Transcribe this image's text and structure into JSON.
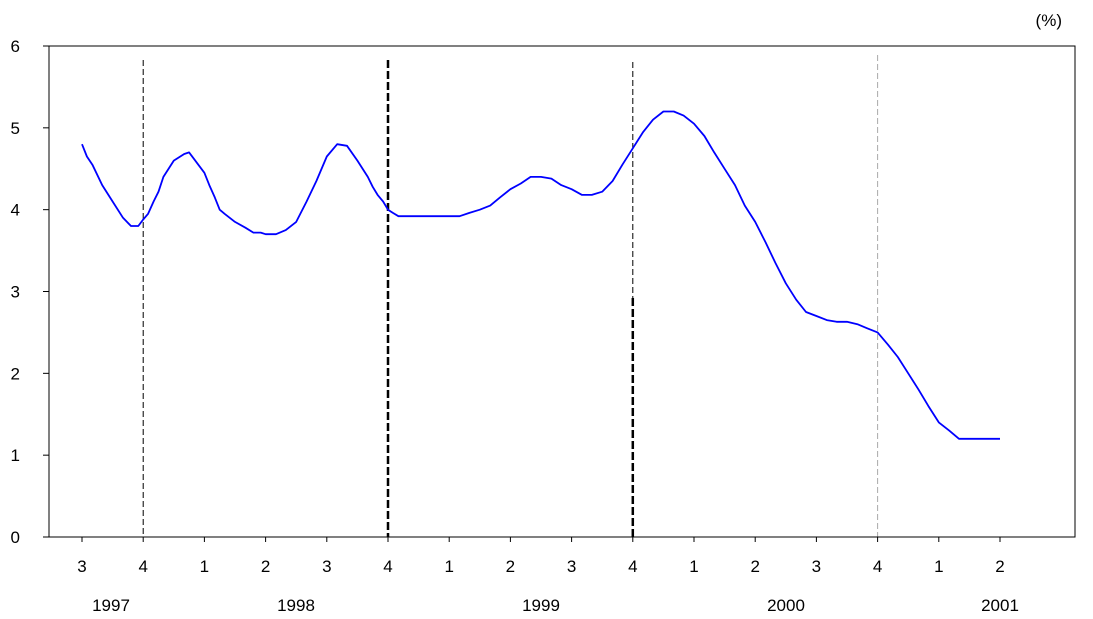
{
  "chart_data": {
    "type": "line",
    "unit_label": "(%)",
    "ylim": [
      0,
      6
    ],
    "y_ticks": [
      "0",
      "1",
      "2",
      "3",
      "4",
      "5",
      "6"
    ],
    "quarter_labels": [
      "3",
      "4",
      "1",
      "2",
      "3",
      "4",
      "1",
      "2",
      "3",
      "4",
      "1",
      "2",
      "3",
      "4",
      "1",
      "2"
    ],
    "year_labels": [
      "1997",
      "1998",
      "1999",
      "2000",
      "2001"
    ],
    "grid": false,
    "legend": "none",
    "series": [
      {
        "color": "#0000ff",
        "x": [
          0.0,
          0.08,
          0.17,
          0.33,
          0.5,
          0.67,
          0.8,
          0.92,
          1.0,
          1.08,
          1.17,
          1.25,
          1.33,
          1.5,
          1.67,
          1.75,
          1.83,
          1.9,
          2.0,
          2.08,
          2.17,
          2.25,
          2.33,
          2.5,
          2.67,
          2.8,
          2.92,
          3.0,
          3.17,
          3.33,
          3.5,
          3.67,
          3.83,
          4.0,
          4.17,
          4.33,
          4.5,
          4.67,
          4.75,
          4.83,
          4.92,
          5.0,
          5.08,
          5.17,
          5.33,
          5.5,
          5.67,
          5.8,
          5.92,
          6.0,
          6.08,
          6.17,
          6.33,
          6.5,
          6.67,
          6.83,
          7.0,
          7.17,
          7.33,
          7.5,
          7.67,
          7.83,
          8.0,
          8.17,
          8.33,
          8.5,
          8.67,
          8.83,
          9.0,
          9.17,
          9.33,
          9.5,
          9.67,
          9.83,
          10.0,
          10.17,
          10.33,
          10.5,
          10.67,
          10.83,
          11.0,
          11.17,
          11.33,
          11.5,
          11.67,
          11.83,
          12.0,
          12.17,
          12.33,
          12.5,
          12.67,
          12.83,
          13.0,
          13.17,
          13.33,
          13.5,
          13.67,
          13.83,
          14.0,
          14.17,
          14.33,
          14.5,
          14.67,
          14.83,
          15.0
        ],
        "values": [
          4.8,
          4.65,
          4.55,
          4.3,
          4.1,
          3.9,
          3.8,
          3.8,
          3.88,
          3.95,
          4.1,
          4.22,
          4.4,
          4.6,
          4.68,
          4.7,
          4.62,
          4.55,
          4.45,
          4.3,
          4.15,
          4.0,
          3.95,
          3.85,
          3.78,
          3.72,
          3.72,
          3.7,
          3.7,
          3.75,
          3.85,
          4.1,
          4.35,
          4.65,
          4.8,
          4.78,
          4.6,
          4.4,
          4.28,
          4.18,
          4.1,
          4.0,
          3.96,
          3.92,
          3.92,
          3.92,
          3.92,
          3.92,
          3.92,
          3.92,
          3.92,
          3.92,
          3.96,
          4.0,
          4.05,
          4.15,
          4.25,
          4.32,
          4.4,
          4.4,
          4.38,
          4.3,
          4.25,
          4.18,
          4.18,
          4.22,
          4.35,
          4.55,
          4.75,
          4.95,
          5.1,
          5.2,
          5.2,
          5.15,
          5.05,
          4.9,
          4.7,
          4.5,
          4.3,
          4.05,
          3.85,
          3.6,
          3.35,
          3.1,
          2.9,
          2.75,
          2.7,
          2.65,
          2.63,
          2.63,
          2.6,
          2.55,
          2.5,
          2.35,
          2.2,
          2.0,
          1.8,
          1.6,
          1.4,
          1.3,
          1.2,
          1.2,
          1.2,
          1.2,
          1.2
        ]
      }
    ]
  }
}
